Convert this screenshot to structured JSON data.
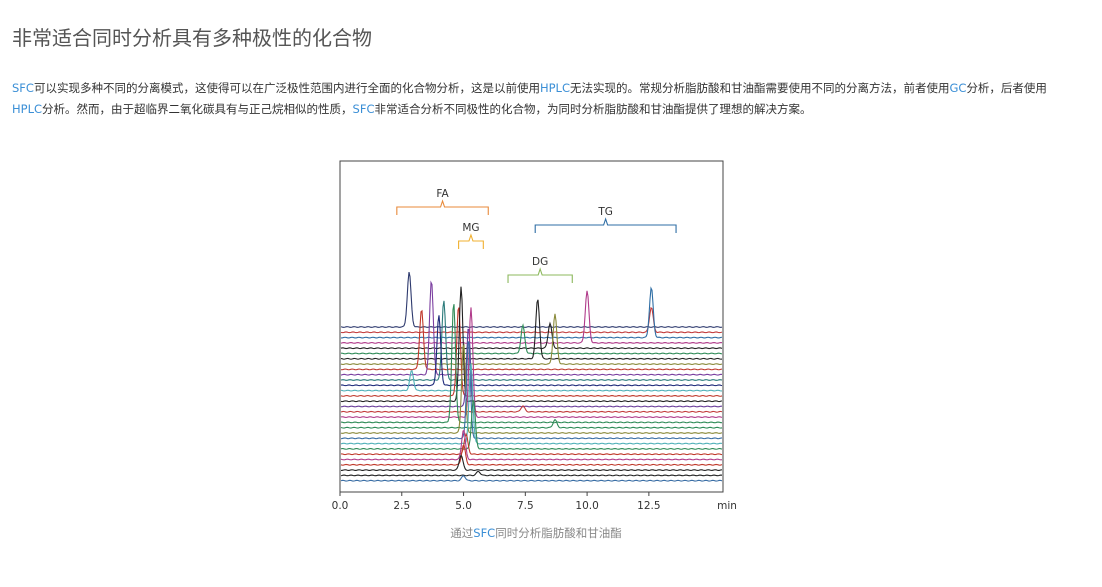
{
  "page": {
    "title": "非常适合同时分析具有多种极性的化合物",
    "paragraph": [
      {
        "text": "SFC",
        "hl": true
      },
      {
        "text": "可以实现多种不同的分离模式，这使得可以在广泛极性范围内进行全面的化合物分析，这是以前使用",
        "hl": false
      },
      {
        "text": "HPLC",
        "hl": true
      },
      {
        "text": "无法实现的。常规分析脂肪酸和甘油酯需要使用不同的分离方法，前者使用",
        "hl": false
      },
      {
        "text": "GC",
        "hl": true
      },
      {
        "text": "分析，后者使用",
        "hl": false
      },
      {
        "text": "HPLC",
        "hl": true
      },
      {
        "text": "分析。然而，由于超临界二氧化碳具有与正己烷相似的性质，",
        "hl": false
      },
      {
        "text": "SFC",
        "hl": true
      },
      {
        "text": "非常适合分析不同极性的化合物，为同时分析脂肪酸和甘油酯提供了理想的解决方案。",
        "hl": false
      }
    ],
    "caption_parts": [
      {
        "text": "通过",
        "hl": false
      },
      {
        "text": "SFC",
        "hl": true
      },
      {
        "text": "同时分析脂肪酸和甘油酯",
        "hl": false
      }
    ]
  },
  "chart_data": {
    "type": "line",
    "xlabel": "min",
    "xlim": [
      0,
      15.5
    ],
    "xticks": [
      0.0,
      2.5,
      5.0,
      7.5,
      10.0,
      12.5
    ],
    "xtick_labels": [
      "0.0",
      "2.5",
      "5.0",
      "7.5",
      "10.0",
      "12.5"
    ],
    "groups": [
      {
        "label": "FA",
        "range": [
          2.3,
          6.0
        ],
        "color": "#e88a3a"
      },
      {
        "label": "MG",
        "range": [
          4.8,
          5.8
        ],
        "color": "#f0b030"
      },
      {
        "label": "DG",
        "range": [
          6.8,
          9.4
        ],
        "color": "#8cb85c"
      },
      {
        "label": "TG",
        "range": [
          7.9,
          13.6
        ],
        "color": "#2e6da4"
      }
    ],
    "series": [
      {
        "color": "#2e3a6e",
        "peaks": [
          [
            2.8,
            55
          ]
        ]
      },
      {
        "color": "#c23b3b",
        "peaks": [
          [
            12.6,
            25
          ]
        ]
      },
      {
        "color": "#2e6da4",
        "peaks": [
          [
            12.6,
            50
          ]
        ]
      },
      {
        "color": "#b03a8a",
        "peaks": [
          [
            10.0,
            52
          ]
        ]
      },
      {
        "color": "#222222",
        "peaks": [
          [
            8.5,
            25
          ]
        ]
      },
      {
        "color": "#2e8b57",
        "peaks": [
          [
            7.4,
            28
          ]
        ]
      },
      {
        "color": "#222222",
        "peaks": [
          [
            8.0,
            60
          ]
        ]
      },
      {
        "color": "#8a8a3a",
        "peaks": [
          [
            8.7,
            50
          ]
        ]
      },
      {
        "color": "#c0392b",
        "peaks": [
          [
            3.3,
            60
          ]
        ]
      },
      {
        "color": "#7b3fa0",
        "peaks": [
          [
            3.7,
            95
          ]
        ]
      },
      {
        "color": "#2a7a7a",
        "peaks": [
          [
            4.2,
            80
          ]
        ]
      },
      {
        "color": "#1e2a7a",
        "peaks": [
          [
            4.0,
            70
          ]
        ]
      },
      {
        "color": "#4fb0b8",
        "peaks": [
          [
            2.9,
            20
          ]
        ]
      },
      {
        "color": "#c0392b",
        "peaks": [
          [
            4.8,
            90
          ]
        ]
      },
      {
        "color": "#222222",
        "peaks": [
          [
            4.9,
            115
          ]
        ]
      },
      {
        "color": "#6a3d9a",
        "peaks": [
          [
            5.2,
            80
          ]
        ]
      },
      {
        "color": "#c23b3b",
        "peaks": [
          [
            7.4,
            6
          ]
        ]
      },
      {
        "color": "#b03a8a",
        "peaks": [
          [
            5.3,
            110
          ]
        ]
      },
      {
        "color": "#2e8b57",
        "peaks": [
          [
            4.6,
            120
          ]
        ]
      },
      {
        "color": "#2e8b57",
        "peaks": [
          [
            8.7,
            8
          ]
        ]
      },
      {
        "color": "#8a8a3a",
        "peaks": [
          [
            5.0,
            90
          ]
        ]
      },
      {
        "color": "#3a6ea5",
        "peaks": [
          [
            5.2,
            100
          ]
        ]
      },
      {
        "color": "#4fb0b8",
        "peaks": [
          [
            5.3,
            80
          ]
        ]
      },
      {
        "color": "#2e8b57",
        "peaks": [
          [
            5.4,
            50
          ]
        ]
      },
      {
        "color": "#c0392b",
        "peaks": [
          [
            5.1,
            20
          ]
        ]
      },
      {
        "color": "#b03a8a",
        "peaks": [
          [
            5.0,
            30
          ]
        ]
      },
      {
        "color": "#c0392b",
        "peaks": [
          [
            5.0,
            20
          ]
        ]
      },
      {
        "color": "#222222",
        "peaks": [
          [
            4.9,
            15
          ]
        ]
      },
      {
        "color": "#222222",
        "peaks": [
          [
            5.6,
            4
          ]
        ]
      },
      {
        "color": "#3a6ea5",
        "peaks": [
          [
            5.0,
            5
          ]
        ]
      }
    ]
  }
}
